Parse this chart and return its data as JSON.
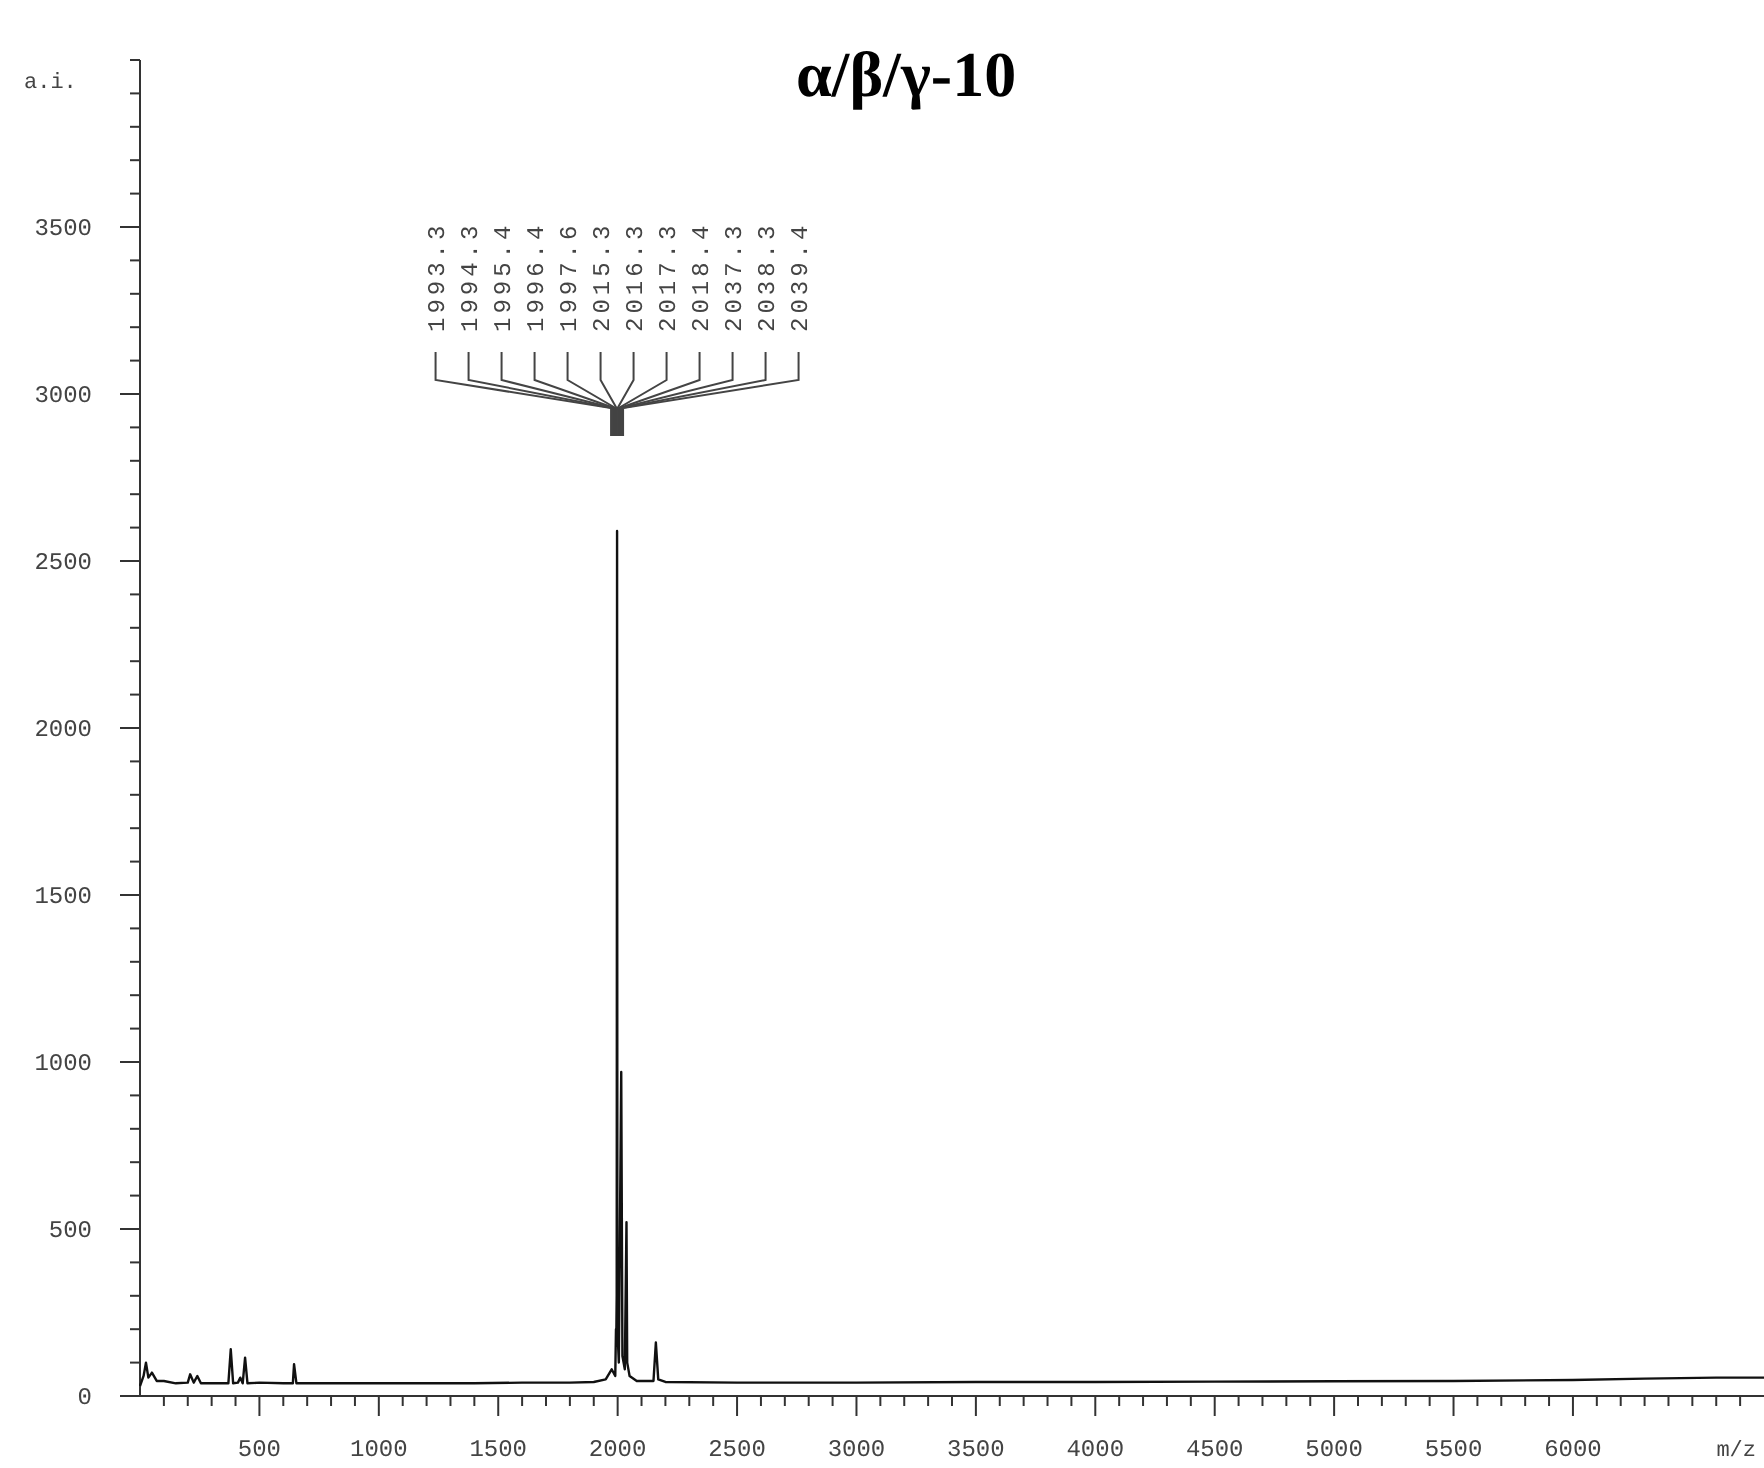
{
  "chart_data": {
    "type": "line",
    "title": "α/β/γ-10",
    "xlabel": "m/z",
    "ylabel": "a.i.",
    "xlim": [
      0,
      6800
    ],
    "ylim": [
      0,
      4000
    ],
    "xticks": [
      {
        "value": 100,
        "label": null
      },
      {
        "value": 200,
        "label": null
      },
      {
        "value": 300,
        "label": null
      },
      {
        "value": 400,
        "label": null
      },
      500,
      {
        "value": 600,
        "label": null
      },
      {
        "value": 700,
        "label": null
      },
      {
        "value": 800,
        "label": null
      },
      {
        "value": 900,
        "label": null
      },
      1000,
      {
        "value": 1100,
        "label": null
      },
      {
        "value": 1200,
        "label": null
      },
      {
        "value": 1300,
        "label": null
      },
      {
        "value": 1400,
        "label": null
      },
      1500,
      {
        "value": 1600,
        "label": null
      },
      {
        "value": 1700,
        "label": null
      },
      {
        "value": 1800,
        "label": null
      },
      {
        "value": 1900,
        "label": null
      },
      2000,
      {
        "value": 2100,
        "label": null
      },
      {
        "value": 2200,
        "label": null
      },
      {
        "value": 2300,
        "label": null
      },
      {
        "value": 2400,
        "label": null
      },
      2500,
      {
        "value": 2600,
        "label": null
      },
      {
        "value": 2700,
        "label": null
      },
      {
        "value": 2800,
        "label": null
      },
      {
        "value": 2900,
        "label": null
      },
      3000,
      {
        "value": 3100,
        "label": null
      },
      {
        "value": 3200,
        "label": null
      },
      {
        "value": 3300,
        "label": null
      },
      {
        "value": 3400,
        "label": null
      },
      3500,
      {
        "value": 3600,
        "label": null
      },
      {
        "value": 3700,
        "label": null
      },
      {
        "value": 3800,
        "label": null
      },
      {
        "value": 3900,
        "label": null
      },
      4000,
      {
        "value": 4100,
        "label": null
      },
      {
        "value": 4200,
        "label": null
      },
      {
        "value": 4300,
        "label": null
      },
      {
        "value": 4400,
        "label": null
      },
      4500,
      {
        "value": 4600,
        "label": null
      },
      {
        "value": 4700,
        "label": null
      },
      {
        "value": 4800,
        "label": null
      },
      {
        "value": 4900,
        "label": null
      },
      5000,
      {
        "value": 5100,
        "label": null
      },
      {
        "value": 5200,
        "label": null
      },
      {
        "value": 5300,
        "label": null
      },
      {
        "value": 5400,
        "label": null
      },
      5500,
      {
        "value": 5600,
        "label": null
      },
      {
        "value": 5700,
        "label": null
      },
      {
        "value": 5800,
        "label": null
      },
      {
        "value": 5900,
        "label": null
      },
      6000,
      {
        "value": 6100,
        "label": null
      },
      {
        "value": 6200,
        "label": null
      },
      {
        "value": 6300,
        "label": null
      },
      {
        "value": 6400,
        "label": null
      },
      {
        "value": 6500,
        "label": null
      },
      {
        "value": 6600,
        "label": null
      },
      {
        "value": 6700,
        "label": null
      }
    ],
    "yticks": [
      0,
      {
        "value": 100,
        "label": null
      },
      {
        "value": 200,
        "label": null
      },
      {
        "value": 300,
        "label": null
      },
      {
        "value": 400,
        "label": null
      },
      500,
      {
        "value": 600,
        "label": null
      },
      {
        "value": 700,
        "label": null
      },
      {
        "value": 800,
        "label": null
      },
      {
        "value": 900,
        "label": null
      },
      1000,
      {
        "value": 1100,
        "label": null
      },
      {
        "value": 1200,
        "label": null
      },
      {
        "value": 1300,
        "label": null
      },
      {
        "value": 1400,
        "label": null
      },
      1500,
      {
        "value": 1600,
        "label": null
      },
      {
        "value": 1700,
        "label": null
      },
      {
        "value": 1800,
        "label": null
      },
      {
        "value": 1900,
        "label": null
      },
      2000,
      {
        "value": 2100,
        "label": null
      },
      {
        "value": 2200,
        "label": null
      },
      {
        "value": 2300,
        "label": null
      },
      {
        "value": 2400,
        "label": null
      },
      2500,
      {
        "value": 2600,
        "label": null
      },
      {
        "value": 2700,
        "label": null
      },
      {
        "value": 2800,
        "label": null
      },
      {
        "value": 2900,
        "label": null
      },
      3000,
      {
        "value": 3100,
        "label": null
      },
      {
        "value": 3200,
        "label": null
      },
      {
        "value": 3300,
        "label": null
      },
      {
        "value": 3400,
        "label": null
      },
      3500,
      {
        "value": 3600,
        "label": null
      },
      {
        "value": 3700,
        "label": null
      },
      {
        "value": 3800,
        "label": null
      },
      {
        "value": 3900,
        "label": null
      },
      {
        "value": 4000,
        "label": null
      }
    ],
    "grid": false,
    "marker": "none",
    "line_style": "solid",
    "annotations": [
      "1993.3",
      "1994.3",
      "1995.4",
      "1996.4",
      "1997.6",
      "2015.3",
      "2016.3",
      "2017.3",
      "2018.4",
      "2037.3",
      "2038.3",
      "2039.4"
    ],
    "series": [
      {
        "color": "#111111",
        "x": [
          0,
          15,
          25,
          35,
          50,
          70,
          100,
          150,
          200,
          210,
          225,
          240,
          255,
          300,
          370,
          380,
          390,
          410,
          420,
          430,
          440,
          450,
          500,
          600,
          640,
          645,
          655,
          800,
          1000,
          1200,
          1400,
          1600,
          1800,
          1900,
          1950,
          1975,
          1990,
          1993,
          1994,
          1996,
          1997.6,
          1999,
          2005,
          2015,
          2020,
          2030,
          2037,
          2040,
          2050,
          2080,
          2150,
          2160,
          2170,
          2200,
          2500,
          3000,
          3500,
          4000,
          4500,
          5000,
          5500,
          6000,
          6300,
          6600,
          6800
        ],
        "values": [
          30,
          60,
          100,
          55,
          70,
          45,
          45,
          38,
          40,
          65,
          40,
          60,
          38,
          38,
          38,
          140,
          38,
          40,
          55,
          38,
          115,
          38,
          40,
          38,
          38,
          95,
          38,
          38,
          38,
          38,
          38,
          40,
          40,
          42,
          50,
          80,
          60,
          200,
          150,
          300,
          2590,
          200,
          100,
          970,
          120,
          80,
          520,
          100,
          60,
          45,
          45,
          160,
          50,
          42,
          40,
          40,
          42,
          42,
          43,
          44,
          45,
          48,
          52,
          55,
          55
        ]
      }
    ]
  }
}
